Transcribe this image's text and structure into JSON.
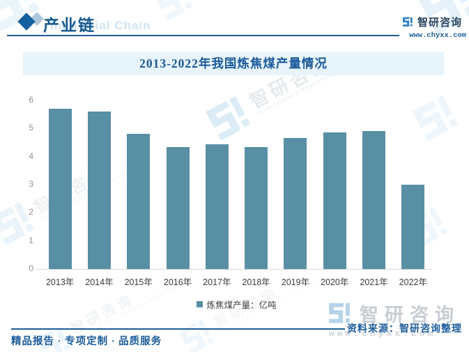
{
  "header": {
    "section_title": "产业链",
    "section_title_en": "Industrial Chain",
    "brand_name": "智研咨询",
    "brand_site": "www.chyxx.com"
  },
  "chart_data": {
    "type": "bar",
    "title": "2013-2022年我国炼焦煤产量情况",
    "categories": [
      "2013年",
      "2014年",
      "2015年",
      "2016年",
      "2017年",
      "2018年",
      "2019年",
      "2020年",
      "2021年",
      "2022年"
    ],
    "series": [
      {
        "name": "炼焦煤产量：亿吨",
        "values": [
          5.7,
          5.6,
          4.8,
          4.35,
          4.45,
          4.35,
          4.65,
          4.85,
          4.9,
          3.0
        ]
      }
    ],
    "xlabel": "",
    "ylabel": "",
    "ylim": [
      0,
      6
    ],
    "y_ticks": [
      0,
      1,
      2,
      3,
      4,
      5,
      6
    ],
    "grid": false,
    "legend_position": "bottom",
    "bar_color": "#588fa5"
  },
  "footer": {
    "source_label": "资料来源：智研咨询整理",
    "tagline": "精品报告 · 专项定制 · 品质服务"
  },
  "watermark": {
    "brand": "智研咨询",
    "site": "www.chyxx.com",
    "subtext": "INTELLIGENCE RESEARCH GROUP"
  },
  "colors": {
    "accent_blue": "#1f5c97",
    "bar": "#588fa5",
    "title_band_bg": "#e8f4fb",
    "axis_label": "#8f8f8f",
    "tick_label": "#3c3c3c"
  }
}
